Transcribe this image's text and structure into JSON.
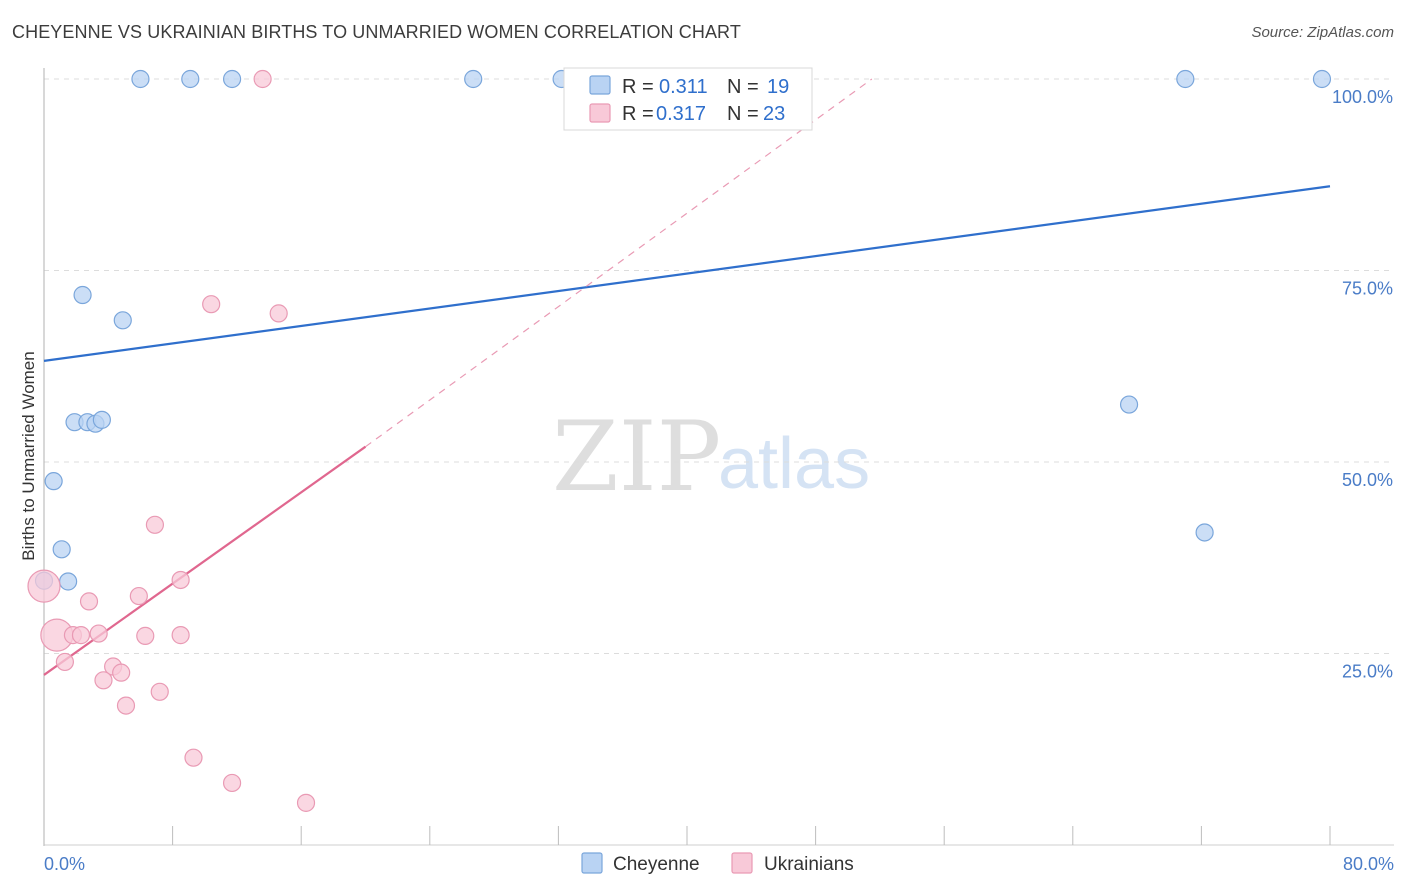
{
  "header": {
    "title": "CHEYENNE VS UKRAINIAN BIRTHS TO UNMARRIED WOMEN CORRELATION CHART",
    "source": "Source: ZipAtlas.com"
  },
  "watermark": {
    "part1": "ZIP",
    "part2": "atlas"
  },
  "colors": {
    "cheyenne_fill": "#b9d3f3",
    "cheyenne_stroke": "#7aa6db",
    "cheyenne_line": "#2f6fcc",
    "ukrainians_fill": "#f8c9d8",
    "ukrainians_stroke": "#e99ab4",
    "ukrainians_line": "#e0678f",
    "axis_text": "#4a7cc7"
  },
  "legend": {
    "rows": [
      {
        "series": "Cheyenne",
        "r_label": "R =",
        "r_value": "0.311",
        "n_label": "N =",
        "n_value": "19"
      },
      {
        "series": "Ukrainians",
        "r_label": "R =",
        "r_value": "0.317",
        "n_label": "N =",
        "n_value": "23"
      }
    ]
  },
  "chart_data": {
    "type": "scatter",
    "title": "CHEYENNE VS UKRAINIAN BIRTHS TO UNMARRIED WOMEN CORRELATION CHART",
    "xlabel": "",
    "ylabel": "Births to Unmarried Women",
    "xlim": [
      0,
      80
    ],
    "ylim": [
      0,
      100
    ],
    "x_tick_labels": [
      "0.0%",
      "80.0%"
    ],
    "y_ticks": [
      25,
      50,
      75,
      100
    ],
    "y_tick_labels": [
      "25.0%",
      "50.0%",
      "75.0%",
      "100.0%"
    ],
    "series": [
      {
        "name": "Cheyenne",
        "points": [
          {
            "x": 6.0,
            "y": 100,
            "big": false
          },
          {
            "x": 9.1,
            "y": 100,
            "big": false
          },
          {
            "x": 11.7,
            "y": 100,
            "big": false
          },
          {
            "x": 26.7,
            "y": 100,
            "big": false
          },
          {
            "x": 32.2,
            "y": 100,
            "big": false
          },
          {
            "x": 71.0,
            "y": 100,
            "big": false
          },
          {
            "x": 79.5,
            "y": 100,
            "big": false
          },
          {
            "x": 2.4,
            "y": 71.8,
            "big": false
          },
          {
            "x": 4.9,
            "y": 68.5,
            "big": false
          },
          {
            "x": 1.9,
            "y": 55.2,
            "big": false
          },
          {
            "x": 2.7,
            "y": 55.2,
            "big": false
          },
          {
            "x": 3.2,
            "y": 55.0,
            "big": false
          },
          {
            "x": 3.6,
            "y": 55.5,
            "big": false
          },
          {
            "x": 0.6,
            "y": 47.5,
            "big": false
          },
          {
            "x": 1.1,
            "y": 38.6,
            "big": false
          },
          {
            "x": 1.5,
            "y": 34.4,
            "big": false
          },
          {
            "x": 0.0,
            "y": 34.5,
            "big": false
          },
          {
            "x": 67.5,
            "y": 57.5,
            "big": false
          },
          {
            "x": 72.2,
            "y": 40.8,
            "big": false
          }
        ],
        "trend": {
          "x0": 0,
          "y0": 63.2,
          "x1": 80,
          "y1": 86.0
        }
      },
      {
        "name": "Ukrainians",
        "points": [
          {
            "x": 13.6,
            "y": 100,
            "big": false
          },
          {
            "x": 10.4,
            "y": 70.6,
            "big": false
          },
          {
            "x": 14.6,
            "y": 69.4,
            "big": false
          },
          {
            "x": 6.9,
            "y": 41.8,
            "big": false
          },
          {
            "x": 8.5,
            "y": 34.6,
            "big": false
          },
          {
            "x": 0.0,
            "y": 33.8,
            "big": true
          },
          {
            "x": 5.9,
            "y": 32.5,
            "big": false
          },
          {
            "x": 2.8,
            "y": 31.8,
            "big": false
          },
          {
            "x": 0.8,
            "y": 27.4,
            "big": true
          },
          {
            "x": 1.8,
            "y": 27.4,
            "big": false
          },
          {
            "x": 2.3,
            "y": 27.4,
            "big": false
          },
          {
            "x": 3.4,
            "y": 27.6,
            "big": false
          },
          {
            "x": 6.3,
            "y": 27.3,
            "big": false
          },
          {
            "x": 8.5,
            "y": 27.4,
            "big": false
          },
          {
            "x": 1.3,
            "y": 23.9,
            "big": false
          },
          {
            "x": 4.3,
            "y": 23.3,
            "big": false
          },
          {
            "x": 4.8,
            "y": 22.5,
            "big": false
          },
          {
            "x": 3.7,
            "y": 21.5,
            "big": false
          },
          {
            "x": 7.2,
            "y": 20.0,
            "big": false
          },
          {
            "x": 5.1,
            "y": 18.2,
            "big": false
          },
          {
            "x": 9.3,
            "y": 11.4,
            "big": false
          },
          {
            "x": 11.7,
            "y": 8.1,
            "big": false
          },
          {
            "x": 16.3,
            "y": 5.5,
            "big": false
          }
        ],
        "trend": {
          "x0": 0,
          "y0": 22.2,
          "x1": 20,
          "y1": 52.0
        },
        "trend_extended": {
          "x0": 20,
          "y0": 52.0,
          "x1": 51.5,
          "y1": 100
        }
      }
    ]
  }
}
